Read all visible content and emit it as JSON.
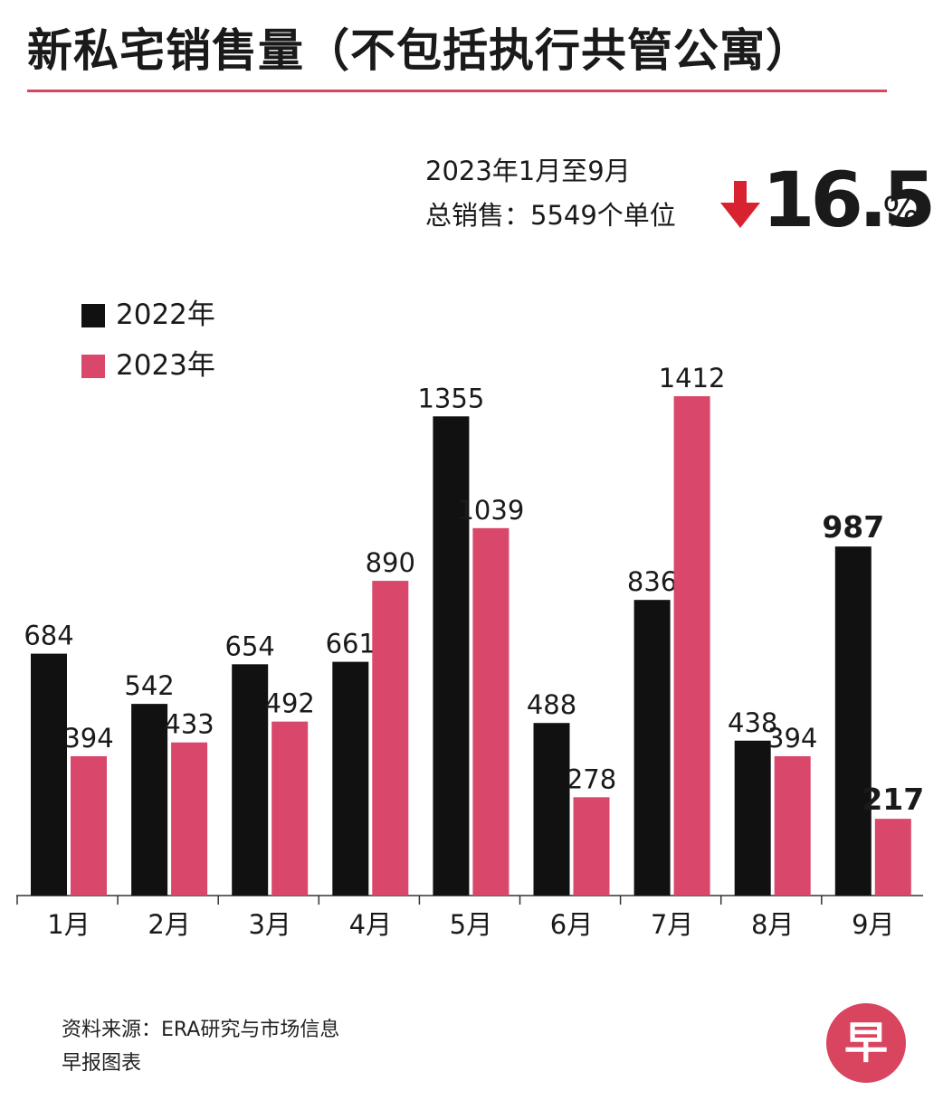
{
  "title": "新私宅销售量（不包括执行共管公寓）",
  "summary": {
    "period": "2023年1月至9月",
    "total_label": "总销售：5549个单位",
    "change_value": "16.5",
    "change_unit": "%",
    "change_direction": "down"
  },
  "colors": {
    "series_2022": "#111111",
    "series_2023": "#d9476a",
    "accent": "#d9445f"
  },
  "chart_data": {
    "type": "bar",
    "title": "新私宅销售量（不包括执行共管公寓）",
    "xlabel": "",
    "ylabel": "",
    "ylim": [
      0,
      1500
    ],
    "grid": false,
    "legend": "top-left",
    "categories": [
      "1月",
      "2月",
      "3月",
      "4月",
      "5月",
      "6月",
      "7月",
      "8月",
      "9月"
    ],
    "series": [
      {
        "name": "2022年",
        "values": [
          684,
          542,
          654,
          661,
          1355,
          488,
          836,
          438,
          987
        ],
        "bold_labels": [
          8
        ]
      },
      {
        "name": "2023年",
        "values": [
          394,
          433,
          492,
          890,
          1039,
          278,
          1412,
          394,
          217
        ],
        "bold_labels": [
          8
        ]
      }
    ]
  },
  "footer": {
    "source": "资料来源：ERA研究与市场信息",
    "credit": "早报图表"
  },
  "logo": {
    "text": "早",
    "icon": "zaobao-logo"
  }
}
